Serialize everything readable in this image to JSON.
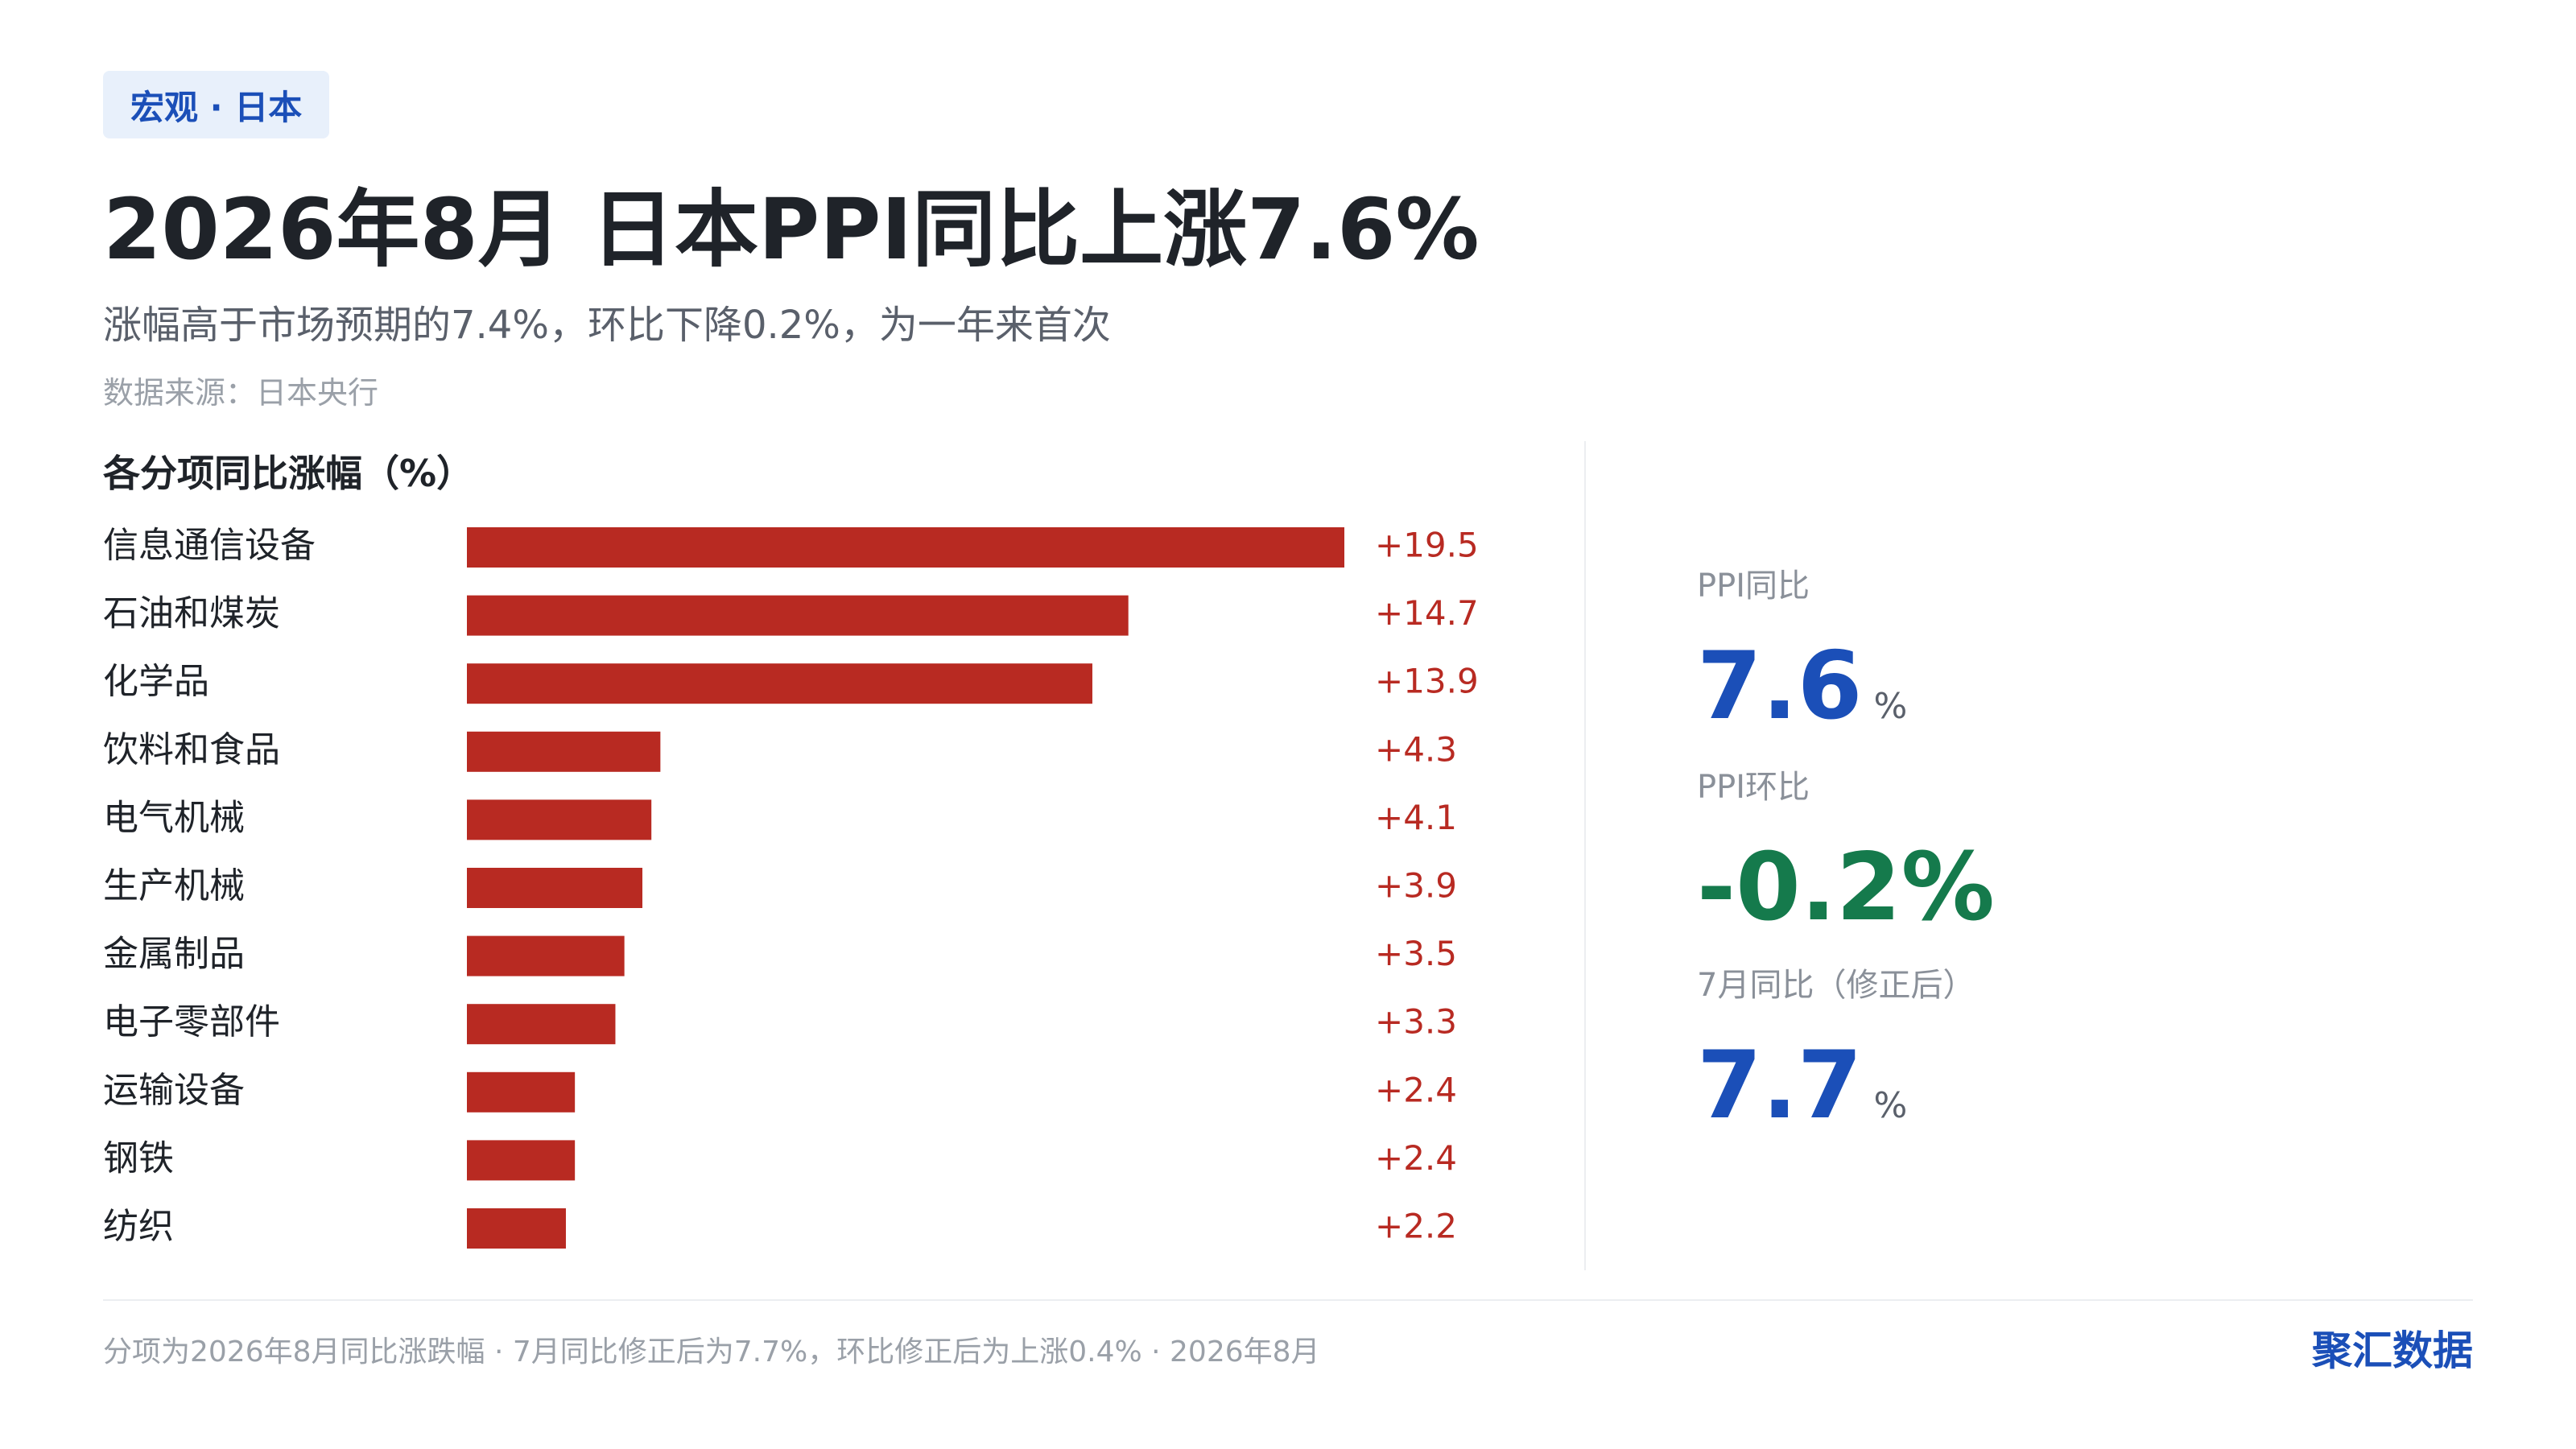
{
  "header": {
    "tag": "宏观 · 日本",
    "title": "2026年8月 日本PPI同比上涨7.6%",
    "subtitle": "涨幅高于市场预期的7.4%，环比下降0.2%，为一年来首次",
    "source": "数据来源：日本央行"
  },
  "chart_data": {
    "type": "bar",
    "orientation": "horizontal",
    "title": "各分项同比涨幅（%）",
    "categories": [
      "信息通信设备",
      "石油和煤炭",
      "化学品",
      "饮料和食品",
      "电气机械",
      "生产机械",
      "金属制品",
      "电子零部件",
      "运输设备",
      "钢铁",
      "纺织"
    ],
    "values": [
      19.5,
      14.7,
      13.9,
      4.3,
      4.1,
      3.9,
      3.5,
      3.3,
      2.4,
      2.4,
      2.2
    ],
    "value_labels": [
      "+19.5",
      "+14.7",
      "+13.9",
      "+4.3",
      "+4.1",
      "+3.9",
      "+3.5",
      "+3.3",
      "+2.4",
      "+2.4",
      "+2.2"
    ],
    "xlim": [
      0,
      19.5
    ],
    "grid": false,
    "bar_color": "#b82a22"
  },
  "stats": {
    "yoy_label": "PPI同比",
    "yoy_value": "7.6",
    "yoy_unit": "%",
    "mom_label": "PPI环比",
    "mom_value": "-0.2%",
    "july_label": "7月同比（修正后）",
    "july_value": "7.7",
    "july_unit": "%"
  },
  "footer": {
    "note": "分项为2026年8月同比涨跌幅 · 7月同比修正后为7.7%，环比修正后为上涨0.4% · 2026年8月",
    "brand": "聚汇数据"
  },
  "colors": {
    "accent_blue": "#1b4fb8",
    "negative_green": "#157a4c",
    "bar_red": "#b82a22"
  }
}
